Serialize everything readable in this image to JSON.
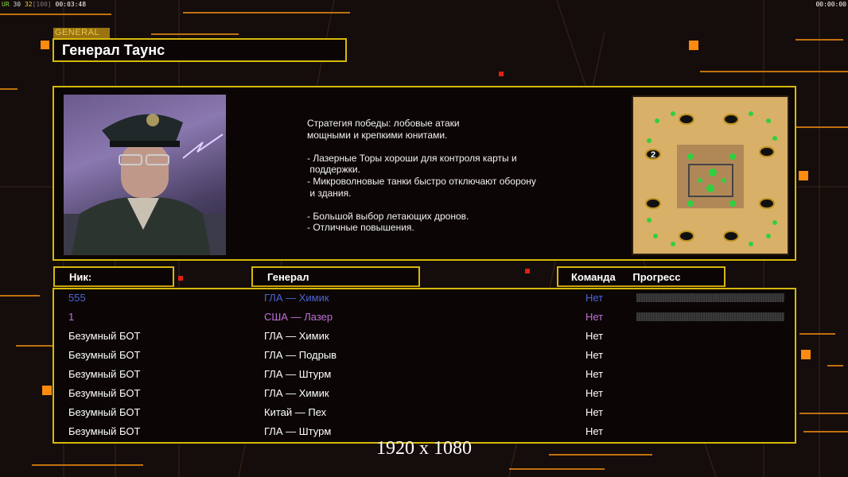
{
  "hud": {
    "left": {
      "ur": "UR",
      "a": "30",
      "b": "32",
      "c": "[100]",
      "time": "00:03:48"
    },
    "right_time": "00:00:00"
  },
  "general_tag": "GENERAL",
  "general_name": "Генерал Таунс",
  "description": "Стратегия победы: лобовые атаки\nмощными и крепкими юнитами.\n\n- Лазерные Торы хороши для контроля карты и\n поддержки.\n- Микроволновые танки быстро отключают оборону\n и здания.\n\n- Большой выбор летающих дронов.\n- Отличные повышения.",
  "map": {
    "player_marker": "2"
  },
  "headers": {
    "nick": "Ник:",
    "general": "Генерал",
    "team": "Команда",
    "progress": "Прогресс"
  },
  "rows": [
    {
      "nick": "555",
      "general": "ГЛА — Химик",
      "team": "Нет",
      "color": "#4a64d8",
      "progress": 0
    },
    {
      "nick": "1",
      "general": "США — Лазер",
      "team": "Нет",
      "color": "#c070d8",
      "progress": 0
    },
    {
      "nick": "Безумный БОТ",
      "general": "ГЛА — Химик",
      "team": "Нет",
      "color": "#ffffff"
    },
    {
      "nick": "Безумный БОТ",
      "general": "ГЛА — Подрыв",
      "team": "Нет",
      "color": "#ffffff"
    },
    {
      "nick": "Безумный БОТ",
      "general": "ГЛА — Штурм",
      "team": "Нет",
      "color": "#ffffff"
    },
    {
      "nick": "Безумный БОТ",
      "general": "ГЛА — Химик",
      "team": "Нет",
      "color": "#ffffff"
    },
    {
      "nick": "Безумный БОТ",
      "general": "Китай — Пех",
      "team": "Нет",
      "color": "#ffffff"
    },
    {
      "nick": "Безумный БОТ",
      "general": "ГЛА — Штурм",
      "team": "Нет",
      "color": "#ffffff"
    }
  ],
  "resolution": "1920 x 1080",
  "colors": {
    "border": "#d6b80c",
    "accent": "#ff8a10",
    "background": "#150d0b"
  }
}
